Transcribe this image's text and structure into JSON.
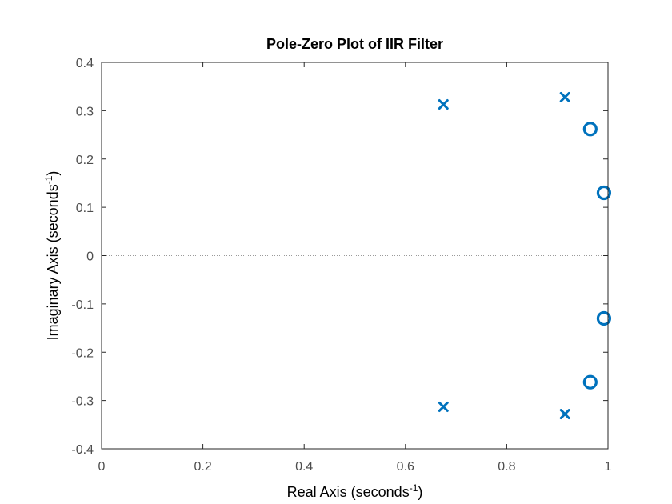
{
  "chart_data": {
    "type": "scatter",
    "title": "Pole-Zero Plot of IIR Filter",
    "xlabel": {
      "text": "Real Axis (seconds",
      "sup": "-1",
      "suffix": ")"
    },
    "ylabel": {
      "text": "Imaginary Axis (seconds",
      "sup": "-1",
      "suffix": ")"
    },
    "xlim": [
      0,
      1
    ],
    "ylim": [
      -0.4,
      0.4
    ],
    "xticks": [
      0,
      0.2,
      0.4,
      0.6,
      0.8,
      1
    ],
    "xtick_labels": [
      "0",
      "0.2",
      "0.4",
      "0.6",
      "0.8",
      "1"
    ],
    "yticks": [
      -0.4,
      -0.3,
      -0.2,
      -0.1,
      0,
      0.1,
      0.2,
      0.3,
      0.4
    ],
    "ytick_labels": [
      "-0.4",
      "-0.3",
      "-0.2",
      "-0.1",
      "0",
      "0.1",
      "0.2",
      "0.3",
      "0.4"
    ],
    "grid": false,
    "zero_line": true,
    "color": "#0072BD",
    "series": [
      {
        "marker": "x",
        "points": [
          {
            "x": 0.675,
            "y": 0.313
          },
          {
            "x": 0.675,
            "y": -0.313
          },
          {
            "x": 0.915,
            "y": 0.328
          },
          {
            "x": 0.915,
            "y": -0.328
          }
        ]
      },
      {
        "marker": "o",
        "points": [
          {
            "x": 0.965,
            "y": 0.262
          },
          {
            "x": 0.965,
            "y": -0.262
          },
          {
            "x": 0.992,
            "y": 0.13
          },
          {
            "x": 0.992,
            "y": -0.13
          }
        ]
      }
    ]
  }
}
